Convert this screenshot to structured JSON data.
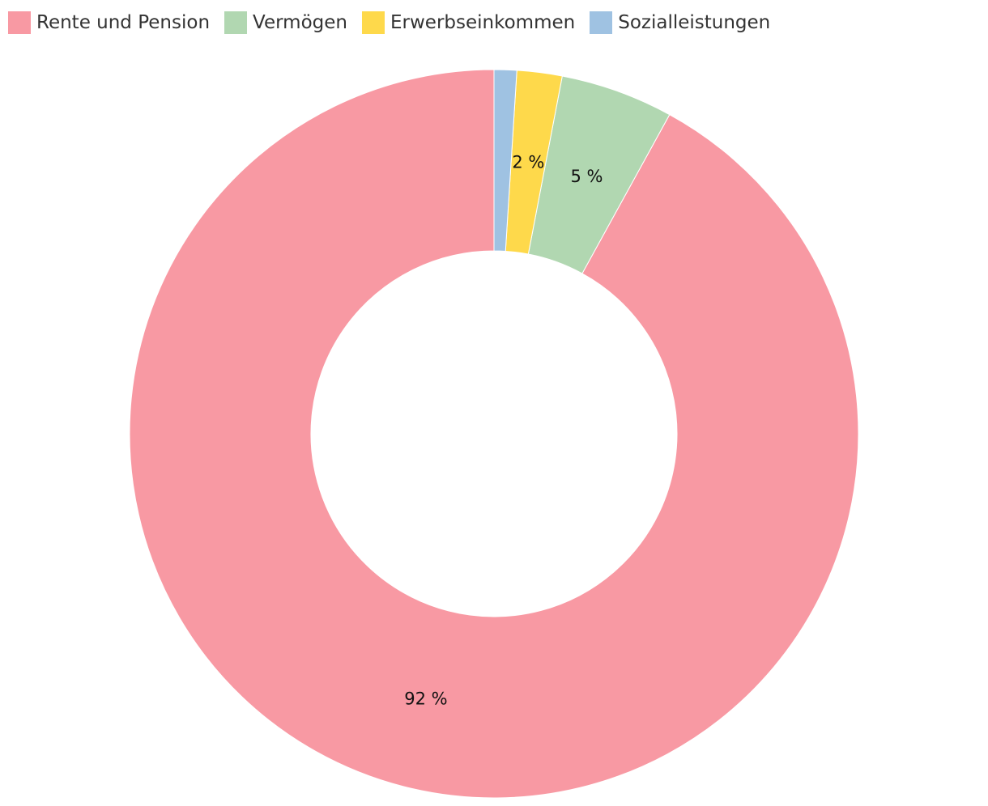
{
  "chart_data": {
    "type": "pie",
    "donut": true,
    "legend_position": "top-left",
    "categories": [
      "Rente und Pension",
      "Vermögen",
      "Erwerbseinkommen",
      "Sozialleistungen"
    ],
    "values": [
      92,
      5,
      2,
      1
    ],
    "data_labels": [
      "92 %",
      "5 %",
      "2 %",
      ""
    ],
    "colors": [
      "#f899a3",
      "#b1d7b1",
      "#fed94b",
      "#9fc2e2"
    ],
    "start_angle_deg": 0,
    "direction": "counterclockwise"
  }
}
